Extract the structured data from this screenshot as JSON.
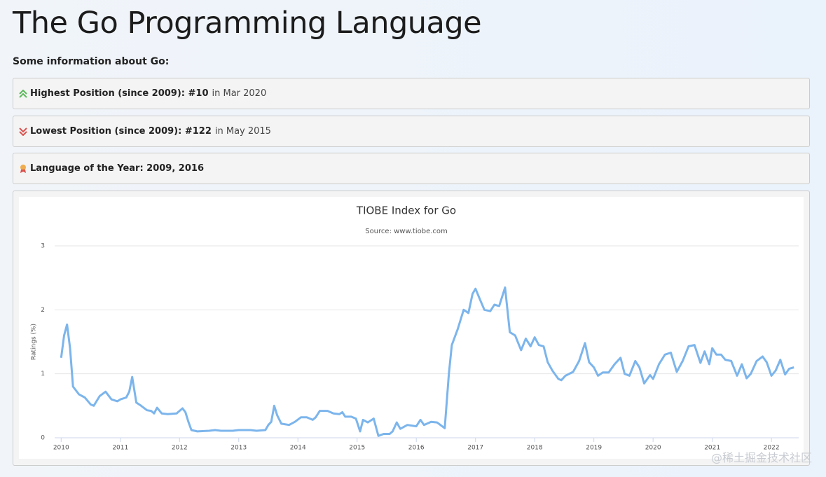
{
  "header": {
    "title": "The Go Programming Language",
    "intro": "Some information about Go:"
  },
  "info": [
    {
      "label": "Highest Position (since 2009): #10",
      "detail": "in Mar 2020"
    },
    {
      "label": "Lowest Position (since 2009): #122",
      "detail": "in May 2015"
    },
    {
      "label": "Language of the Year: 2009, 2016"
    }
  ],
  "watermark": "@稀土掘金技术社区",
  "chart_data": {
    "type": "line",
    "title": "TIOBE Index for Go",
    "subtitle": "Source: www.tiobe.com",
    "y_label": "Ratings (%)",
    "color": "#7cb5ec",
    "x": [
      2010.0,
      2010.05,
      2010.1,
      2010.15,
      2010.2,
      2010.3,
      2010.4,
      2010.5,
      2010.55,
      2010.65,
      2010.75,
      2010.85,
      2010.95,
      2011.0,
      2011.1,
      2011.15,
      2011.2,
      2011.27,
      2011.35,
      2011.45,
      2011.52,
      2011.57,
      2011.62,
      2011.7,
      2011.8,
      2011.95,
      2012.05,
      2012.1,
      2012.15,
      2012.2,
      2012.3,
      2012.5,
      2012.6,
      2012.7,
      2012.9,
      2013.0,
      2013.2,
      2013.3,
      2013.45,
      2013.5,
      2013.55,
      2013.6,
      2013.65,
      2013.72,
      2013.85,
      2013.95,
      2014.05,
      2014.15,
      2014.25,
      2014.3,
      2014.37,
      2014.5,
      2014.6,
      2014.7,
      2014.75,
      2014.8,
      2014.9,
      2014.98,
      2015.05,
      2015.1,
      2015.18,
      2015.28,
      2015.36,
      2015.45,
      2015.55,
      2015.6,
      2015.67,
      2015.73,
      2015.85,
      2016.0,
      2016.07,
      2016.13,
      2016.25,
      2016.35,
      2016.48,
      2016.55,
      2016.6,
      2016.7,
      2016.8,
      2016.88,
      2016.95,
      2017.0,
      2017.08,
      2017.15,
      2017.25,
      2017.32,
      2017.4,
      2017.5,
      2017.58,
      2017.67,
      2017.77,
      2017.85,
      2017.93,
      2018.0,
      2018.07,
      2018.15,
      2018.22,
      2018.3,
      2018.4,
      2018.45,
      2018.52,
      2018.65,
      2018.75,
      2018.85,
      2018.92,
      2019.0,
      2019.07,
      2019.15,
      2019.25,
      2019.35,
      2019.45,
      2019.52,
      2019.6,
      2019.7,
      2019.77,
      2019.85,
      2019.95,
      2020.0,
      2020.1,
      2020.2,
      2020.3,
      2020.4,
      2020.5,
      2020.6,
      2020.7,
      2020.8,
      2020.87,
      2020.95,
      2021.0,
      2021.07,
      2021.15,
      2021.22,
      2021.32,
      2021.42,
      2021.5,
      2021.58,
      2021.65,
      2021.75,
      2021.85,
      2021.92,
      2022.0,
      2022.07,
      2022.15,
      2022.23,
      2022.3,
      2022.38
    ],
    "values": [
      1.25,
      1.6,
      1.77,
      1.4,
      0.8,
      0.68,
      0.63,
      0.52,
      0.5,
      0.65,
      0.72,
      0.6,
      0.57,
      0.6,
      0.63,
      0.72,
      0.95,
      0.55,
      0.5,
      0.43,
      0.42,
      0.38,
      0.47,
      0.38,
      0.37,
      0.38,
      0.46,
      0.4,
      0.25,
      0.12,
      0.1,
      0.11,
      0.12,
      0.11,
      0.11,
      0.12,
      0.12,
      0.11,
      0.12,
      0.2,
      0.25,
      0.5,
      0.35,
      0.22,
      0.2,
      0.25,
      0.32,
      0.32,
      0.28,
      0.32,
      0.42,
      0.42,
      0.38,
      0.37,
      0.4,
      0.33,
      0.33,
      0.3,
      0.1,
      0.28,
      0.24,
      0.3,
      0.03,
      0.06,
      0.06,
      0.1,
      0.24,
      0.14,
      0.2,
      0.18,
      0.28,
      0.2,
      0.25,
      0.24,
      0.15,
      1.0,
      1.45,
      1.7,
      2.0,
      1.95,
      2.25,
      2.33,
      2.15,
      2.0,
      1.98,
      2.08,
      2.06,
      2.35,
      1.65,
      1.6,
      1.37,
      1.55,
      1.43,
      1.57,
      1.45,
      1.43,
      1.18,
      1.05,
      0.92,
      0.9,
      0.97,
      1.03,
      1.2,
      1.48,
      1.18,
      1.1,
      0.97,
      1.02,
      1.02,
      1.15,
      1.25,
      1.0,
      0.97,
      1.2,
      1.1,
      0.85,
      0.98,
      0.92,
      1.15,
      1.3,
      1.33,
      1.03,
      1.2,
      1.43,
      1.45,
      1.17,
      1.35,
      1.15,
      1.4,
      1.3,
      1.3,
      1.22,
      1.2,
      0.97,
      1.15,
      0.93,
      1.0,
      1.2,
      1.27,
      1.18,
      0.97,
      1.05,
      1.22,
      0.99,
      1.08,
      1.1
    ],
    "xlim": [
      2009.89,
      2022.46
    ],
    "xticks": [
      2010,
      2011,
      2012,
      2013,
      2014,
      2015,
      2016,
      2017,
      2018,
      2019,
      2020,
      2021,
      2022
    ],
    "ylim": [
      0,
      3
    ],
    "yticks": [
      0,
      1,
      2,
      3
    ],
    "grid": true
  }
}
